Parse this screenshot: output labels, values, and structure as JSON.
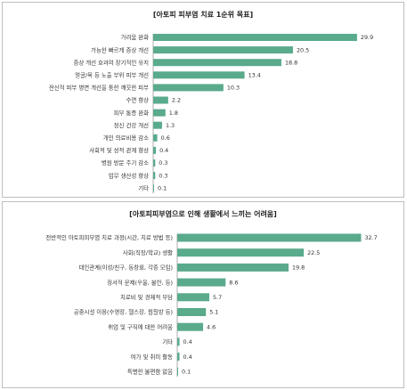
{
  "chart_data": [
    {
      "type": "bar",
      "orientation": "horizontal",
      "title": "[아토피 피부염 치료 1순위 목표]",
      "categories": [
        "가려움 완화",
        "가능한 빠르게 증상 개선",
        "증상 개선 효과의 장기적인 유지",
        "얼굴/목 등 노출 부위 피부 개선",
        "전신적 피부 병변 개선을 통한 깨끗한 피부",
        "수면 향상",
        "피부 통증 완화",
        "정신 건강 개선",
        "개인 의료비용 감소",
        "사회적 및 성적 관계 향상",
        "병원 방문 주기 감소",
        "업무 생산성 향상",
        "기타"
      ],
      "values": [
        29.9,
        20.5,
        18.8,
        13.4,
        10.3,
        2.2,
        1.8,
        1.3,
        0.6,
        0.4,
        0.3,
        0.3,
        0.1
      ],
      "value_labels": [
        "29.9",
        "20.5",
        "18.8",
        "13.4",
        "10.3",
        "2.2",
        "1.8",
        "1.3",
        "0.6",
        "0.4",
        "0.3",
        "0.3",
        "0.1"
      ],
      "xlim": [
        0,
        32
      ],
      "grid": false,
      "bar_color": "#5aaa8c"
    },
    {
      "type": "bar",
      "orientation": "horizontal",
      "title": "[아토피피부염으로 인해 생활에서 느끼는 어려움]",
      "categories": [
        "전반적인 아토피피부염 치료 과정(시간, 치료 방법 등)",
        "사회(직장/학교) 생활",
        "대인관계(이성/친구, 동창회, 각종 모임)",
        "정서적 문제(우울, 불안, 등)",
        "치료비 및 경제적 부담",
        "공중시설 이용(수영장, 헬스장, 찜질방 등)",
        "취업 및 구직에 대한 어려움",
        "기타",
        "여가 및 취미 활동",
        "특별한 불편함 없음"
      ],
      "values": [
        32.7,
        22.5,
        19.8,
        8.6,
        5.7,
        5.1,
        4.6,
        0.4,
        0.4,
        0.1
      ],
      "value_labels": [
        "32.7",
        "22.5",
        "19.8",
        "8.6",
        "5.7",
        "5.1",
        "4.6",
        "0.4",
        "0.4",
        "0.1"
      ],
      "xlim": [
        0,
        35
      ],
      "grid": false,
      "bar_color": "#5aaa8c"
    }
  ]
}
